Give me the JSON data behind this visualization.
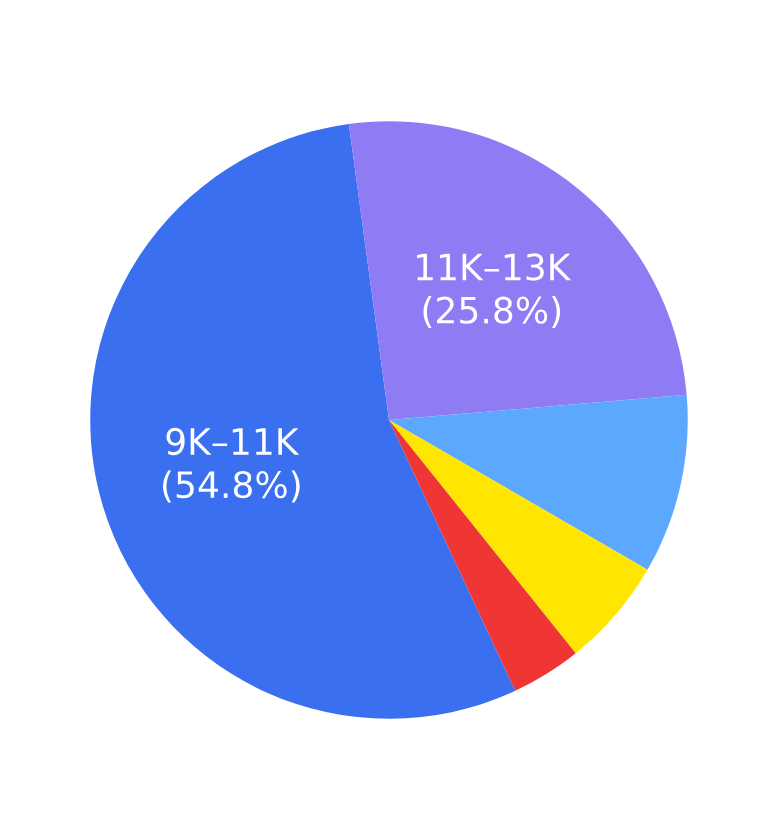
{
  "chart_data": {
    "type": "pie",
    "categories": [
      "9K–11K",
      "11K–13K",
      null,
      null,
      null
    ],
    "values": [
      54.8,
      25.8,
      9.7,
      5.9,
      3.8
    ],
    "value_labels": [
      "(54.8%)",
      "(25.8%)",
      null,
      null,
      null
    ],
    "colors": [
      "#3a6ff0",
      "#8f7cf5",
      "#5ca8ff",
      "#ffe600",
      "#f03535"
    ],
    "legend": false
  }
}
